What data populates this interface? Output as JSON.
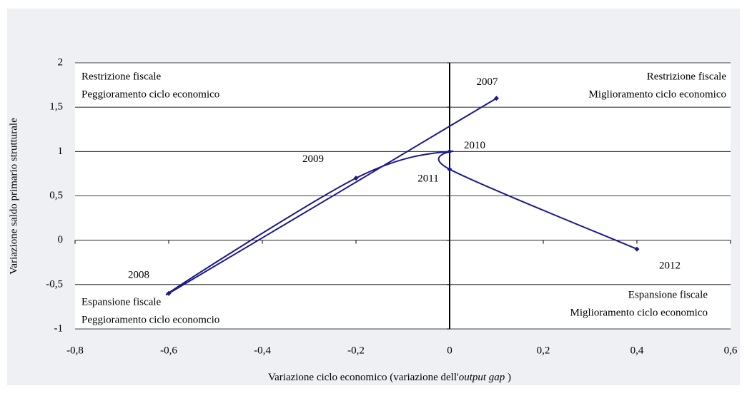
{
  "chart_data": {
    "type": "line",
    "xlabel": [
      "Variazione ciclo  economico (variazione dell'",
      "output gap",
      " )"
    ],
    "ylabel": "Variazione saldo primario strutturale",
    "x": [
      0.1,
      -0.6,
      -0.2,
      0,
      0,
      0.4
    ],
    "series": [
      {
        "color": "#1a1a8c",
        "values": [
          1.6,
          -0.6,
          0.7,
          1,
          0.8,
          -0.1
        ],
        "point_labels": [
          "2007",
          "2008",
          "2009",
          "2010",
          "2011",
          "2012"
        ]
      }
    ],
    "xlim": [
      -0.8,
      0.6
    ],
    "xticks": [
      {
        "value": -0.8,
        "label": "-0,8"
      },
      {
        "value": -0.6,
        "label": "-0,6"
      },
      {
        "value": -0.4,
        "label": "-0,4"
      },
      {
        "value": -0.2,
        "label": "-0,2"
      },
      0,
      {
        "value": 0.2,
        "label": "0,2"
      },
      {
        "value": 0.4,
        "label": "0,4"
      },
      {
        "value": 0.6,
        "label": "0,6"
      }
    ],
    "ylim": [
      -1,
      2
    ],
    "yticks": [
      -1,
      {
        "value": -0.5,
        "label": "-0,5"
      },
      0,
      {
        "value": 0.5,
        "label": "0,5"
      },
      1,
      {
        "value": 1.5,
        "label": "1,5"
      },
      2
    ],
    "grid": true,
    "annotations": [
      "Restrizione fiscale",
      "Peggioramento ciclo economico",
      "Restrizione fiscale",
      "Miglioramento ciclo economico",
      "Espansione fiscale",
      "Peggioramento ciclo economcio",
      "Espansione fiscale",
      "Miglioramento ciclo economico"
    ]
  }
}
